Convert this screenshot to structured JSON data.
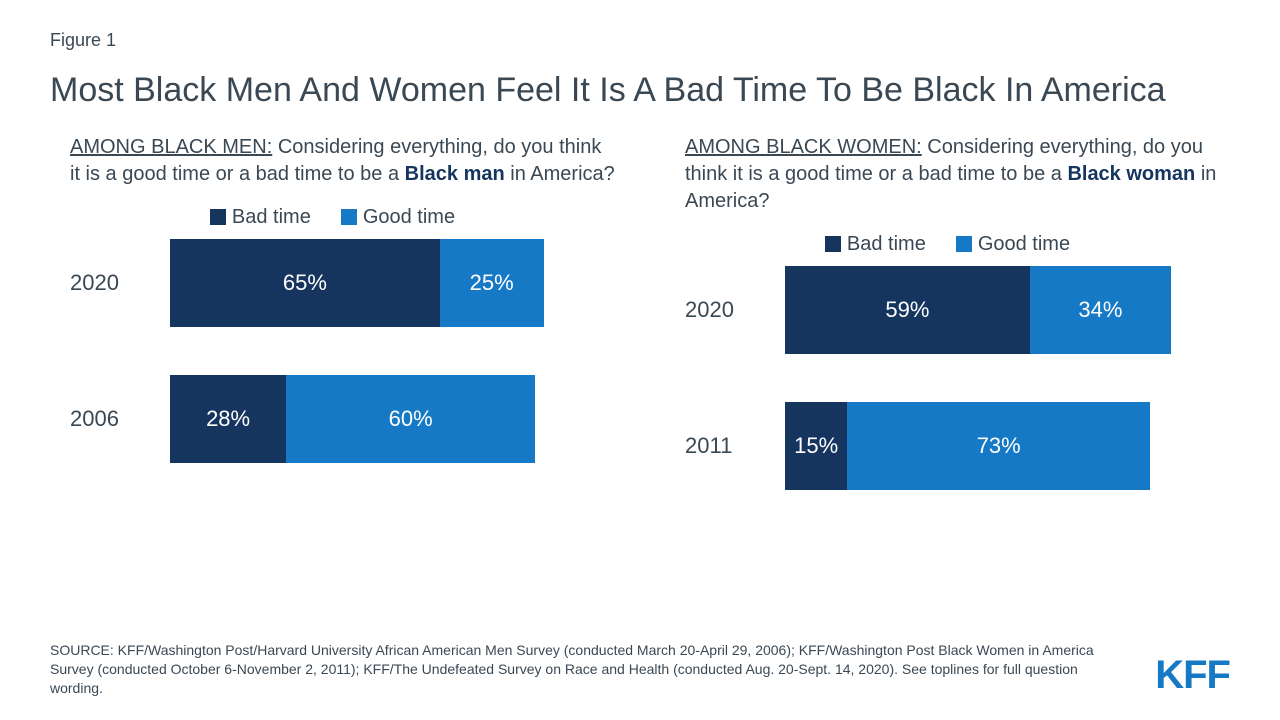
{
  "figure_label": "Figure 1",
  "title": "Most Black Men And Women Feel It Is A Bad Time To Be Black In America",
  "colors": {
    "bad": "#15355f",
    "good": "#1679c5",
    "text": "#3a4854",
    "bg": "#ffffff"
  },
  "panels": [
    {
      "question_lead": "AMONG BLACK MEN:",
      "question_body": " Considering everything, do you think it is a good time or a bad time to be a ",
      "question_emph": "Black man",
      "question_tail": " in America?",
      "legend": {
        "bad": "Bad time",
        "good": "Good time"
      },
      "scale_max": 100,
      "rows": [
        {
          "year": "2020",
          "bad": 65,
          "good": 25
        },
        {
          "year": "2006",
          "bad": 28,
          "good": 60
        }
      ]
    },
    {
      "question_lead": "AMONG BLACK WOMEN:",
      "question_body": " Considering everything, do you think it is a good time or a bad time to be a ",
      "question_emph": "Black woman",
      "question_tail": " in America?",
      "legend": {
        "bad": "Bad time",
        "good": "Good time"
      },
      "scale_max": 100,
      "rows": [
        {
          "year": "2020",
          "bad": 59,
          "good": 34
        },
        {
          "year": "2011",
          "bad": 15,
          "good": 73
        }
      ]
    }
  ],
  "source": "SOURCE: KFF/Washington Post/Harvard University African American Men Survey (conducted March 20-April 29, 2006); KFF/Washington Post Black Women in America Survey (conducted October 6-November 2, 2011); KFF/The Undefeated Survey on Race and Health (conducted Aug. 20-Sept. 14, 2020). See toplines for full question wording.",
  "logo": "KFF"
}
